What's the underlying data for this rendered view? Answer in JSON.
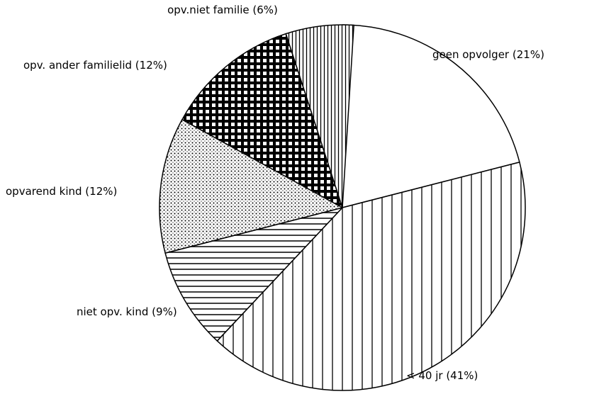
{
  "chart_data": {
    "type": "pie",
    "categories": [
      "geen opvolger",
      "< 40 jr",
      "niet opv. kind",
      "opvarend kind",
      "opv. ander familielid",
      "opv.niet familie"
    ],
    "values": [
      21,
      41,
      9,
      12,
      12,
      6
    ],
    "value_labels": [
      "(21%)",
      "(41%)",
      "(9%)",
      "(12%)",
      "(12%)",
      "(6%)"
    ],
    "patterns": [
      "none",
      "vertical",
      "horizontal",
      "dots",
      "checks",
      "vertical-dense"
    ],
    "color": "#000000"
  }
}
